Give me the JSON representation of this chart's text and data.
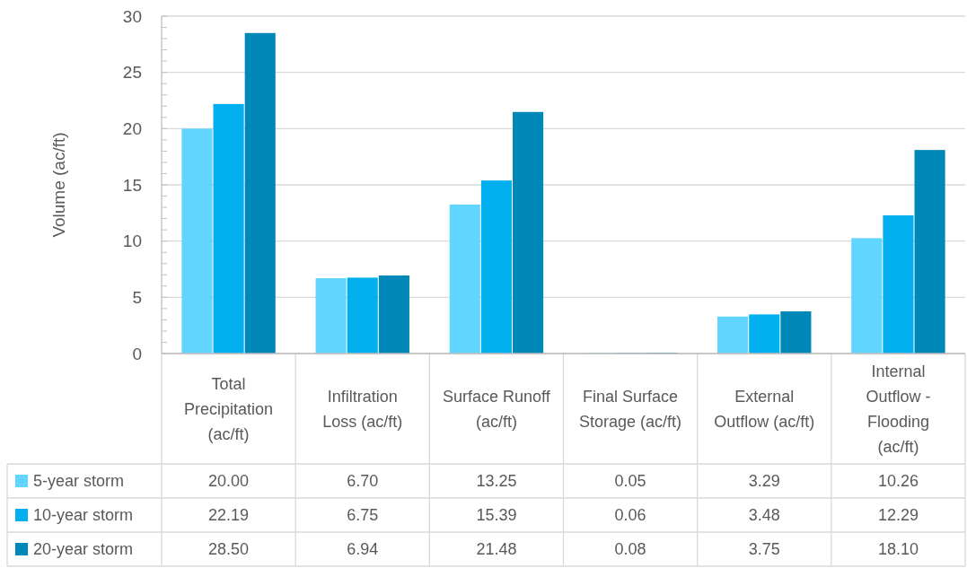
{
  "chart_data": {
    "type": "bar",
    "ylabel": "Volume (ac/ft)",
    "categories": [
      "Total Precipitation (ac/ft)",
      "Infiltration Loss (ac/ft)",
      "Surface Runoff (ac/ft)",
      "Final Surface Storage (ac/ft)",
      "External Outflow (ac/ft)",
      "Internal Outflow - Flooding (ac/ft)"
    ],
    "series": [
      {
        "name": "5-year storm",
        "color": "#61d5fd",
        "values": [
          20.0,
          6.7,
          13.25,
          0.05,
          3.29,
          10.26
        ],
        "value_labels": [
          "20.00",
          "6.70",
          "13.25",
          "0.05",
          "3.29",
          "10.26"
        ]
      },
      {
        "name": "10-year storm",
        "color": "#02b0ef",
        "values": [
          22.19,
          6.75,
          15.39,
          0.06,
          3.48,
          12.29
        ],
        "value_labels": [
          "22.19",
          "6.75",
          "15.39",
          "0.06",
          "3.48",
          "12.29"
        ]
      },
      {
        "name": "20-year storm",
        "color": "#0088b8",
        "values": [
          28.5,
          6.94,
          21.48,
          0.08,
          3.75,
          18.1
        ],
        "value_labels": [
          "28.50",
          "6.94",
          "21.48",
          "0.08",
          "3.75",
          "18.10"
        ]
      }
    ],
    "ylim": [
      0,
      30
    ],
    "yticks": [
      0,
      {
        "value": 1,
        "label": null
      },
      {
        "value": 2,
        "label": null
      },
      {
        "value": 3,
        "label": null
      },
      {
        "value": 4,
        "label": null
      },
      5,
      {
        "value": 6,
        "label": null
      },
      {
        "value": 7,
        "label": null
      },
      {
        "value": 8,
        "label": null
      },
      {
        "value": 9,
        "label": null
      },
      10,
      {
        "value": 11,
        "label": null
      },
      {
        "value": 12,
        "label": null
      },
      {
        "value": 13,
        "label": null
      },
      {
        "value": 14,
        "label": null
      },
      15,
      {
        "value": 16,
        "label": null
      },
      {
        "value": 17,
        "label": null
      },
      {
        "value": 18,
        "label": null
      },
      {
        "value": 19,
        "label": null
      },
      20,
      {
        "value": 21,
        "label": null
      },
      {
        "value": 22,
        "label": null
      },
      {
        "value": 23,
        "label": null
      },
      {
        "value": 24,
        "label": null
      },
      25,
      {
        "value": 26,
        "label": null
      },
      {
        "value": 27,
        "label": null
      },
      {
        "value": 28,
        "label": null
      },
      {
        "value": 29,
        "label": null
      },
      30
    ],
    "grid": "y",
    "legend": "bottom"
  }
}
